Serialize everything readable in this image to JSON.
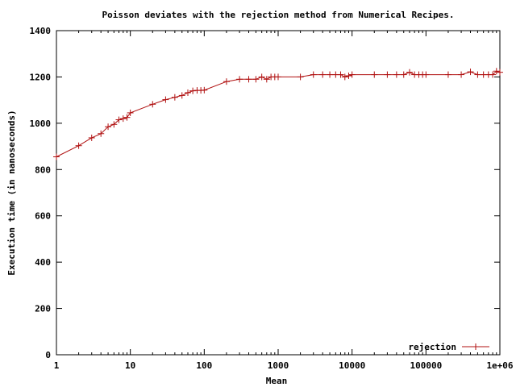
{
  "chart_data": {
    "type": "line",
    "title": "Poisson deviates with the rejection method from Numerical Recipes.",
    "xlabel": "Mean",
    "ylabel": "Execution time (in nanoseconds)",
    "x_scale": "log",
    "xlim": [
      1,
      1000000
    ],
    "ylim": [
      0,
      1400
    ],
    "x_ticks": [
      1,
      10,
      100,
      1000,
      10000,
      100000,
      1000000
    ],
    "x_tick_labels": [
      "1",
      "10",
      "100",
      "1000",
      "10000",
      "100000",
      "1e+06"
    ],
    "y_ticks": [
      0,
      200,
      400,
      600,
      800,
      1000,
      1200,
      1400
    ],
    "y_tick_labels": [
      "0",
      "200",
      "400",
      "600",
      "800",
      "1000",
      "1200",
      "1400"
    ],
    "grid": false,
    "legend_position": "bottom-right",
    "series": [
      {
        "name": "rejection",
        "color": "#b01010",
        "marker": "plus",
        "x": [
          1,
          2,
          3,
          4,
          5,
          6,
          7,
          8,
          9,
          10,
          20,
          30,
          40,
          50,
          60,
          70,
          80,
          90,
          100,
          200,
          300,
          400,
          500,
          600,
          700,
          800,
          900,
          1000,
          2000,
          3000,
          4000,
          5000,
          6000,
          7000,
          8000,
          9000,
          10000,
          20000,
          30000,
          40000,
          50000,
          60000,
          70000,
          80000,
          90000,
          100000,
          200000,
          300000,
          400000,
          500000,
          600000,
          700000,
          800000,
          900000,
          1000000
        ],
        "y": [
          855,
          903,
          937,
          955,
          985,
          995,
          1015,
          1020,
          1025,
          1045,
          1082,
          1102,
          1112,
          1120,
          1132,
          1140,
          1142,
          1142,
          1143,
          1180,
          1190,
          1190,
          1190,
          1200,
          1190,
          1200,
          1200,
          1200,
          1200,
          1210,
          1210,
          1210,
          1210,
          1210,
          1200,
          1205,
          1210,
          1210,
          1210,
          1210,
          1210,
          1220,
          1210,
          1210,
          1210,
          1210,
          1210,
          1210,
          1222,
          1210,
          1210,
          1210,
          1210,
          1225,
          1220
        ]
      }
    ]
  }
}
